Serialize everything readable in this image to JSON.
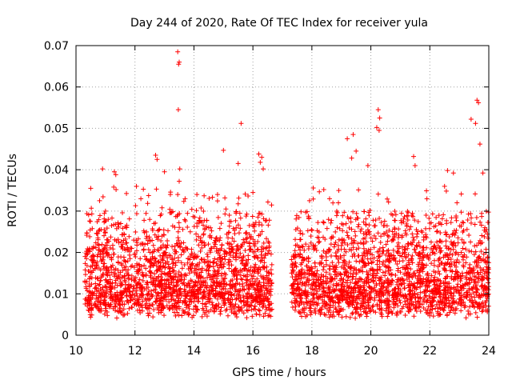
{
  "chart_data": {
    "type": "scatter",
    "title": "Day 244 of 2020, Rate Of TEC Index for receiver yula",
    "xlabel": "GPS time / hours",
    "ylabel": "ROTI / TECUs",
    "xlim": [
      10,
      24
    ],
    "ylim": [
      0,
      0.07
    ],
    "grid": true,
    "marker": "+",
    "color": "#ff0000",
    "x_ticks": [
      10,
      12,
      14,
      16,
      18,
      20,
      22,
      24
    ],
    "x_tick_labels": [
      "10",
      "12",
      "14",
      "16",
      "18",
      "20",
      "22",
      "24"
    ],
    "y_ticks": [
      0,
      0.01,
      0.02,
      0.03,
      0.04,
      0.05,
      0.06,
      0.07
    ],
    "y_tick_labels": [
      "0",
      "0.01",
      "0.02",
      "0.03",
      "0.04",
      "0.05",
      "0.06",
      "0.07"
    ],
    "series": [
      {
        "name": "ROTI",
        "segments": [
          [
            10.3,
            16.65
          ],
          [
            17.3,
            24.0
          ]
        ],
        "x": [
          13.45,
          13.5,
          13.48,
          13.47,
          13.52,
          13.45,
          15.6,
          15.0,
          10.9,
          11.3,
          11.35,
          12.7,
          12.75,
          13.5,
          14.1,
          16.2,
          16.3,
          16.25,
          16.35,
          19.2,
          19.4,
          19.5,
          19.35,
          20.25,
          20.3,
          20.2,
          20.28,
          21.45,
          21.5,
          23.4,
          23.6,
          23.65,
          23.55,
          23.7,
          23.8,
          22.6,
          22.8,
          22.5,
          19.9,
          20.6,
          18.6,
          18.9,
          17.6,
          12.05,
          12.2,
          12.5,
          13.0,
          13.2,
          13.7,
          14.5,
          14.8,
          15.2,
          15.5,
          16.0,
          10.5,
          10.8,
          11.0
        ],
        "y": [
          0.0685,
          0.066,
          0.0655,
          0.0545,
          0.0402,
          0.034,
          0.0512,
          0.0447,
          0.0402,
          0.0395,
          0.0388,
          0.0435,
          0.0425,
          0.0372,
          0.034,
          0.0438,
          0.043,
          0.0418,
          0.0402,
          0.0475,
          0.0485,
          0.0445,
          0.0428,
          0.0545,
          0.0525,
          0.0502,
          0.0495,
          0.0432,
          0.041,
          0.0522,
          0.0568,
          0.0562,
          0.0512,
          0.0462,
          0.0392,
          0.0398,
          0.0392,
          0.036,
          0.041,
          0.0322,
          0.033,
          0.032,
          0.0212,
          0.036,
          0.033,
          0.028,
          0.0395,
          0.034,
          0.033,
          0.026,
          0.034,
          0.029,
          0.0415,
          0.0345,
          0.0355,
          0.0325,
          0.03
        ]
      }
    ]
  }
}
